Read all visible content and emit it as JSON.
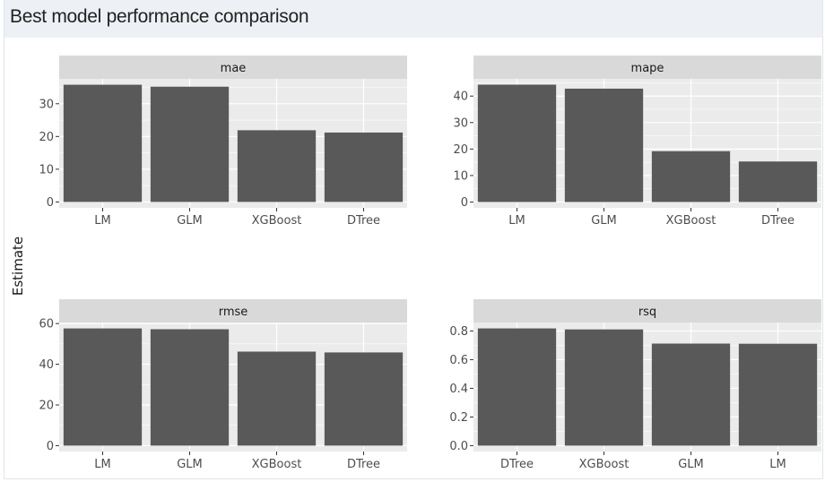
{
  "title": "Best model performance comparison",
  "chart_data": {
    "type": "bar",
    "ylabel": "Estimate",
    "xlabel": "",
    "grid": true,
    "panels": [
      {
        "facet": "mae",
        "categories": [
          "LM",
          "GLM",
          "XGBoost",
          "DTree"
        ],
        "values": [
          35.8,
          35.2,
          21.9,
          21.2
        ],
        "ylim": [
          -1.8,
          37.6
        ],
        "yticks": [
          0,
          10,
          20,
          30
        ]
      },
      {
        "facet": "mape",
        "categories": [
          "LM",
          "GLM",
          "XGBoost",
          "DTree"
        ],
        "values": [
          44.3,
          42.8,
          19.2,
          15.3
        ],
        "ylim": [
          -2.2,
          46.5
        ],
        "yticks": [
          0,
          10,
          20,
          30,
          40
        ]
      },
      {
        "facet": "rmse",
        "categories": [
          "LM",
          "GLM",
          "XGBoost",
          "DTree"
        ],
        "values": [
          57.6,
          57.2,
          46.2,
          45.8
        ],
        "ylim": [
          -2.9,
          60.5
        ],
        "yticks": [
          0,
          20,
          40,
          60
        ]
      },
      {
        "facet": "rsq",
        "categories": [
          "DTree",
          "XGBoost",
          "GLM",
          "LM"
        ],
        "values": [
          0.818,
          0.811,
          0.712,
          0.711
        ],
        "ylim": [
          -0.041,
          0.859
        ],
        "yticks": [
          0.0,
          0.2,
          0.4,
          0.6,
          0.8
        ],
        "ytick_labels": [
          "0.0",
          "0.2",
          "0.4",
          "0.6",
          "0.8"
        ]
      }
    ],
    "colors": {
      "bar": "#595959",
      "panel_bg": "#ebebeb",
      "strip_bg": "#d9d9d9",
      "grid": "#ffffff"
    }
  }
}
